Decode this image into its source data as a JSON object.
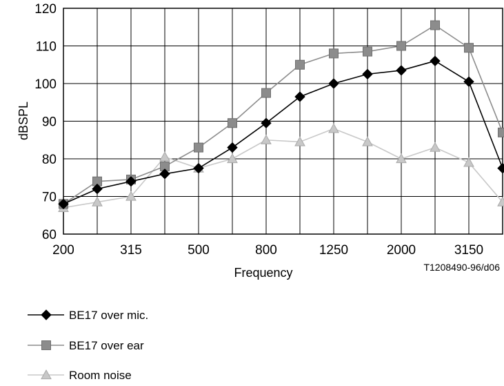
{
  "chart_data": {
    "type": "line",
    "xlabel": "Frequency",
    "ylabel": "dBSPL",
    "ylim": [
      60,
      120
    ],
    "yticks": [
      60,
      70,
      80,
      90,
      100,
      110,
      120
    ],
    "x_positions": [
      "200",
      "250",
      "315",
      "400",
      "500",
      "630",
      "800",
      "1000",
      "1250",
      "1600",
      "2000",
      "2500",
      "3150",
      "4000"
    ],
    "xtick_labels": [
      "200",
      "315",
      "500",
      "800",
      "1250",
      "2000",
      "3150"
    ],
    "grid": true,
    "legend_position": "bottom-left",
    "annotation": "T1208490-96/d06",
    "series": [
      {
        "name": "BE17 over mic.",
        "marker": "diamond",
        "color": "#000000",
        "values": [
          68,
          72,
          74,
          76,
          77.5,
          83,
          89.5,
          96.5,
          100,
          102.5,
          103.5,
          106,
          100.5,
          77.5
        ]
      },
      {
        "name": "BE17 over ear",
        "marker": "square",
        "color": "#8c8c8c",
        "values": [
          68,
          74,
          74.5,
          78,
          83,
          89.5,
          97.5,
          105,
          108,
          108.5,
          110,
          115.5,
          109.5,
          87
        ]
      },
      {
        "name": "Room noise",
        "marker": "triangle",
        "color": "#c8c8c8",
        "values": [
          67,
          68.5,
          70,
          80.5,
          77.5,
          80,
          85,
          84.5,
          88,
          84.5,
          80,
          83,
          79,
          68.5
        ]
      }
    ]
  }
}
